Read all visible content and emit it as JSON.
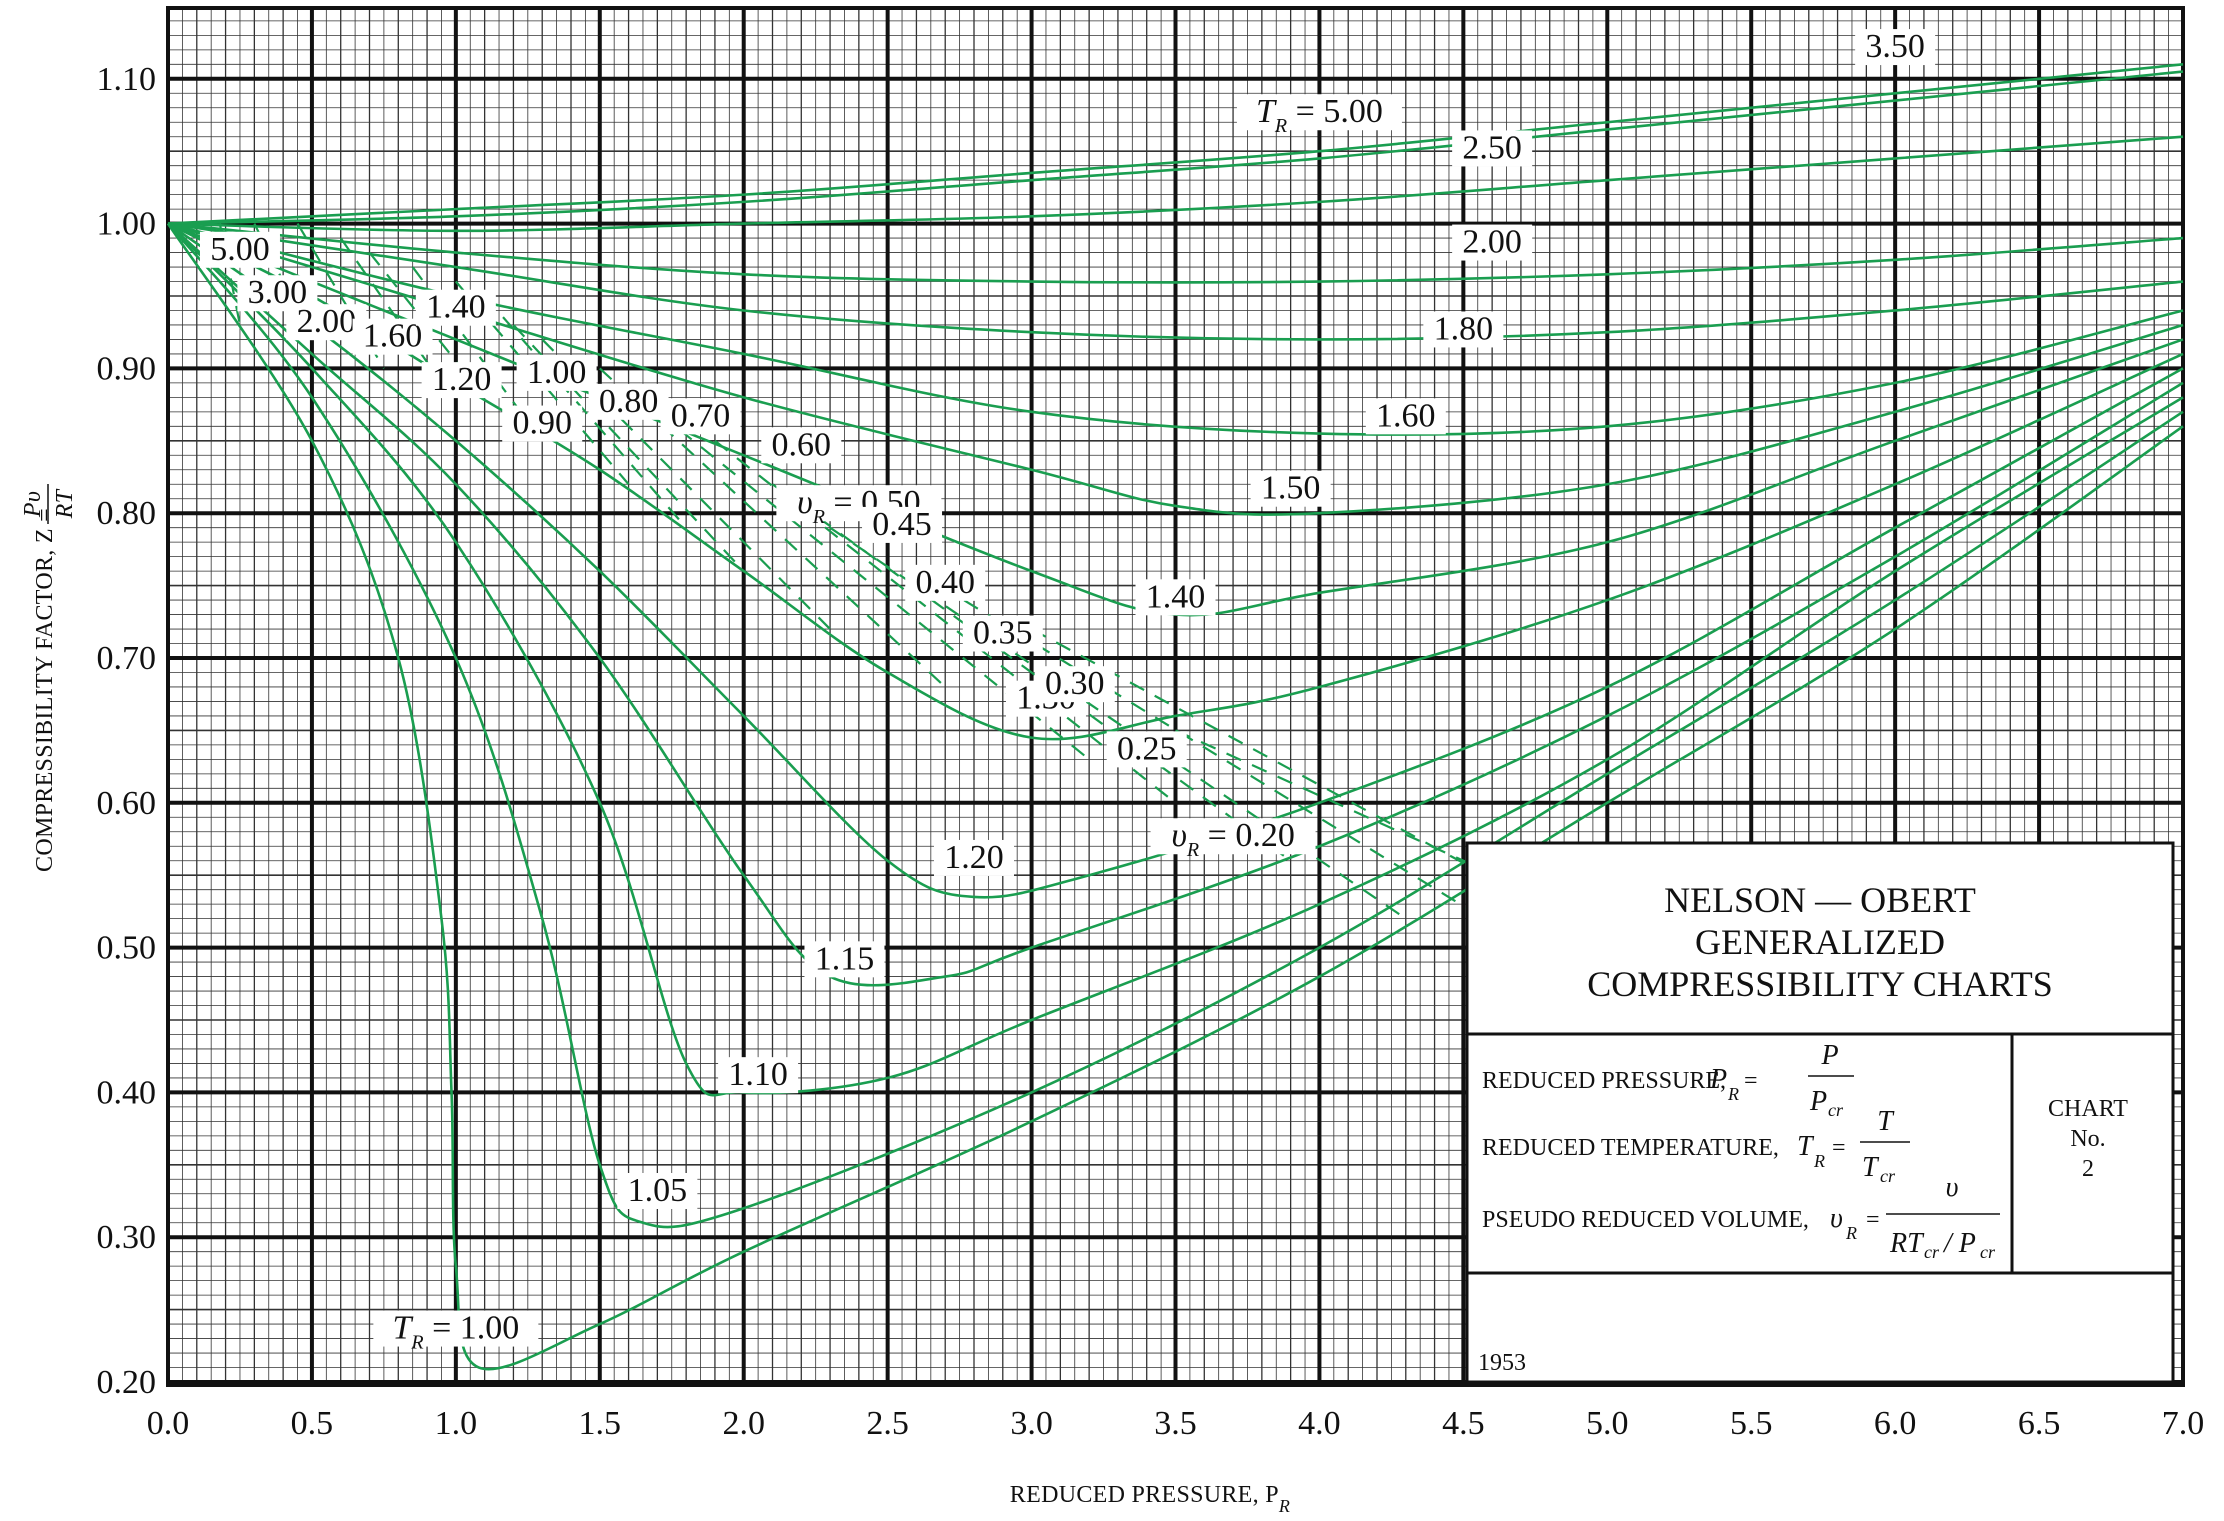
{
  "chart_data": {
    "type": "line",
    "title": "NELSON — OBERT GENERALIZED COMPRESSIBILITY CHARTS",
    "title_lines": [
      "NELSON — OBERT",
      "GENERALIZED",
      "COMPRESSIBILITY CHARTS"
    ],
    "chart_number_lines": [
      "CHART",
      "No.",
      "2"
    ],
    "year": "1953",
    "xlabel": "REDUCED PRESSURE, P",
    "xlabel_sub": "R",
    "ylabel": "COMPRESSIBILITY FACTOR, Z =",
    "ylabel_frac_num": "Pυ",
    "ylabel_frac_den": "RT",
    "xlim": [
      0.0,
      7.0
    ],
    "ylim": [
      0.2,
      1.14
    ],
    "x_ticks": [
      "0.0",
      "0.5",
      "1.0",
      "1.5",
      "2.0",
      "2.5",
      "3.0",
      "3.5",
      "4.0",
      "4.5",
      "5.0",
      "5.5",
      "6.0",
      "6.5",
      "7.0"
    ],
    "y_ticks": [
      "0.20",
      "0.30",
      "0.40",
      "0.50",
      "0.60",
      "0.70",
      "0.80",
      "0.90",
      "1.00",
      "1.10"
    ],
    "grid": true,
    "definitions": [
      {
        "text": "REDUCED PRESSURE,",
        "symbol": "P",
        "sub": "R",
        "num": "P",
        "den": "P",
        "den_sub": "cr"
      },
      {
        "text": "REDUCED TEMPERATURE,",
        "symbol": "T",
        "sub": "R",
        "num": "T",
        "den": "T",
        "den_sub": "cr"
      },
      {
        "text": "PSEUDO REDUCED VOLUME,",
        "symbol": "υ",
        "sub": "R",
        "num": "υ",
        "den": "RT",
        "den_sub": "cr",
        "den_tail": "/ P",
        "den_tail_sub": "cr"
      }
    ],
    "series": [
      {
        "name": "T_R = 1.00",
        "kind": "isotherm",
        "points": [
          [
            0,
            1.0
          ],
          [
            0.5,
            0.85
          ],
          [
            0.8,
            0.7
          ],
          [
            0.95,
            0.52
          ],
          [
            0.985,
            0.4
          ],
          [
            1.0,
            0.28
          ],
          [
            1.08,
            0.21
          ],
          [
            1.5,
            0.24
          ],
          [
            2.0,
            0.29
          ],
          [
            3.0,
            0.38
          ],
          [
            4.0,
            0.48
          ],
          [
            5.0,
            0.6
          ],
          [
            6.0,
            0.72
          ],
          [
            7.0,
            0.86
          ]
        ]
      },
      {
        "name": "T_R = 1.05",
        "kind": "isotherm",
        "points": [
          [
            0,
            1.0
          ],
          [
            0.5,
            0.88
          ],
          [
            1.0,
            0.7
          ],
          [
            1.3,
            0.52
          ],
          [
            1.5,
            0.35
          ],
          [
            1.65,
            0.31
          ],
          [
            2.0,
            0.32
          ],
          [
            3.0,
            0.4
          ],
          [
            4.0,
            0.5
          ],
          [
            5.0,
            0.62
          ],
          [
            6.0,
            0.74
          ],
          [
            7.0,
            0.87
          ]
        ]
      },
      {
        "name": "T_R = 1.10",
        "kind": "isotherm",
        "points": [
          [
            0,
            1.0
          ],
          [
            0.5,
            0.9
          ],
          [
            1.0,
            0.78
          ],
          [
            1.5,
            0.6
          ],
          [
            1.8,
            0.42
          ],
          [
            2.0,
            0.4
          ],
          [
            2.5,
            0.41
          ],
          [
            3.0,
            0.45
          ],
          [
            4.0,
            0.53
          ],
          [
            5.0,
            0.63
          ],
          [
            6.0,
            0.76
          ],
          [
            7.0,
            0.88
          ]
        ]
      },
      {
        "name": "T_R = 1.15",
        "kind": "isotherm",
        "points": [
          [
            0,
            1.0
          ],
          [
            0.5,
            0.91
          ],
          [
            1.0,
            0.82
          ],
          [
            1.5,
            0.7
          ],
          [
            2.0,
            0.55
          ],
          [
            2.3,
            0.48
          ],
          [
            2.7,
            0.48
          ],
          [
            3.0,
            0.5
          ],
          [
            4.0,
            0.57
          ],
          [
            5.0,
            0.66
          ],
          [
            6.0,
            0.77
          ],
          [
            7.0,
            0.89
          ]
        ]
      },
      {
        "name": "T_R = 1.20",
        "kind": "isotherm",
        "points": [
          [
            0,
            1.0
          ],
          [
            0.5,
            0.93
          ],
          [
            1.0,
            0.85
          ],
          [
            1.5,
            0.76
          ],
          [
            2.0,
            0.66
          ],
          [
            2.5,
            0.56
          ],
          [
            2.8,
            0.535
          ],
          [
            3.2,
            0.55
          ],
          [
            4.0,
            0.6
          ],
          [
            5.0,
            0.68
          ],
          [
            6.0,
            0.79
          ],
          [
            7.0,
            0.9
          ]
        ]
      },
      {
        "name": "T_R = 1.30",
        "kind": "isotherm",
        "points": [
          [
            0,
            1.0
          ],
          [
            0.5,
            0.95
          ],
          [
            1.0,
            0.89
          ],
          [
            1.5,
            0.83
          ],
          [
            2.0,
            0.76
          ],
          [
            2.5,
            0.69
          ],
          [
            3.0,
            0.645
          ],
          [
            3.5,
            0.66
          ],
          [
            4.0,
            0.68
          ],
          [
            5.0,
            0.74
          ],
          [
            6.0,
            0.82
          ],
          [
            7.0,
            0.91
          ]
        ]
      },
      {
        "name": "T_R = 1.40",
        "kind": "isotherm",
        "points": [
          [
            0,
            1.0
          ],
          [
            0.5,
            0.96
          ],
          [
            1.0,
            0.92
          ],
          [
            2.0,
            0.84
          ],
          [
            3.0,
            0.76
          ],
          [
            3.5,
            0.73
          ],
          [
            4.0,
            0.745
          ],
          [
            5.0,
            0.78
          ],
          [
            6.0,
            0.85
          ],
          [
            7.0,
            0.92
          ]
        ]
      },
      {
        "name": "T_R = 1.50",
        "kind": "isotherm",
        "points": [
          [
            0,
            1.0
          ],
          [
            0.5,
            0.97
          ],
          [
            1.0,
            0.94
          ],
          [
            2.0,
            0.88
          ],
          [
            3.0,
            0.83
          ],
          [
            3.5,
            0.805
          ],
          [
            4.0,
            0.8
          ],
          [
            5.0,
            0.82
          ],
          [
            6.0,
            0.87
          ],
          [
            7.0,
            0.93
          ]
        ]
      },
      {
        "name": "T_R = 1.60",
        "kind": "isotherm",
        "points": [
          [
            0,
            1.0
          ],
          [
            1.0,
            0.95
          ],
          [
            2.0,
            0.91
          ],
          [
            3.0,
            0.87
          ],
          [
            4.0,
            0.855
          ],
          [
            5.0,
            0.86
          ],
          [
            6.0,
            0.89
          ],
          [
            7.0,
            0.94
          ]
        ]
      },
      {
        "name": "T_R = 1.80",
        "kind": "isotherm",
        "points": [
          [
            0,
            1.0
          ],
          [
            1.0,
            0.97
          ],
          [
            2.0,
            0.94
          ],
          [
            3.0,
            0.925
          ],
          [
            4.0,
            0.92
          ],
          [
            5.0,
            0.925
          ],
          [
            6.0,
            0.94
          ],
          [
            7.0,
            0.96
          ]
        ]
      },
      {
        "name": "T_R = 2.00",
        "kind": "isotherm",
        "points": [
          [
            0,
            1.0
          ],
          [
            1.0,
            0.98
          ],
          [
            2.0,
            0.965
          ],
          [
            3.0,
            0.96
          ],
          [
            4.0,
            0.96
          ],
          [
            5.0,
            0.965
          ],
          [
            6.0,
            0.975
          ],
          [
            7.0,
            0.99
          ]
        ]
      },
      {
        "name": "T_R = 2.50",
        "kind": "isotherm",
        "points": [
          [
            0,
            1.0
          ],
          [
            1.0,
            0.995
          ],
          [
            2.0,
            1.0
          ],
          [
            3.0,
            1.005
          ],
          [
            4.0,
            1.015
          ],
          [
            5.0,
            1.03
          ],
          [
            6.0,
            1.045
          ],
          [
            7.0,
            1.06
          ]
        ]
      },
      {
        "name": "T_R = 3.50",
        "kind": "isotherm",
        "points": [
          [
            0,
            1.0
          ],
          [
            1.0,
            1.005
          ],
          [
            2.0,
            1.015
          ],
          [
            3.0,
            1.03
          ],
          [
            4.0,
            1.045
          ],
          [
            5.0,
            1.065
          ],
          [
            6.0,
            1.085
          ],
          [
            7.0,
            1.105
          ]
        ]
      },
      {
        "name": "T_R = 5.00",
        "kind": "isotherm",
        "points": [
          [
            0,
            1.0
          ],
          [
            1.0,
            1.01
          ],
          [
            2.0,
            1.02
          ],
          [
            3.0,
            1.035
          ],
          [
            4.0,
            1.05
          ],
          [
            5.0,
            1.07
          ],
          [
            6.0,
            1.09
          ],
          [
            7.0,
            1.11
          ]
        ]
      },
      {
        "name": "v_R = 5.00",
        "kind": "volume",
        "points": [
          [
            0.18,
            1.0
          ],
          [
            0.25,
            0.93
          ]
        ]
      },
      {
        "name": "v_R = 3.00",
        "kind": "volume",
        "points": [
          [
            0.3,
            1.0
          ],
          [
            0.5,
            0.92
          ]
        ]
      },
      {
        "name": "v_R = 2.00",
        "kind": "volume",
        "points": [
          [
            0.45,
            1.0
          ],
          [
            0.75,
            0.9
          ]
        ]
      },
      {
        "name": "v_R = 1.60",
        "kind": "volume",
        "points": [
          [
            0.6,
            0.99
          ],
          [
            0.95,
            0.89
          ]
        ]
      },
      {
        "name": "v_R = 1.40",
        "kind": "volume",
        "points": [
          [
            0.7,
            0.98
          ],
          [
            1.1,
            0.88
          ]
        ]
      },
      {
        "name": "v_R = 1.20",
        "kind": "volume",
        "points": [
          [
            0.85,
            0.97
          ],
          [
            1.3,
            0.85
          ]
        ]
      },
      {
        "name": "v_R = 1.00",
        "kind": "volume",
        "points": [
          [
            1.0,
            0.96
          ],
          [
            1.6,
            0.82
          ]
        ]
      },
      {
        "name": "v_R = 0.90",
        "kind": "volume",
        "points": [
          [
            1.1,
            0.95
          ],
          [
            1.8,
            0.79
          ]
        ]
      },
      {
        "name": "v_R = 0.80",
        "kind": "volume",
        "points": [
          [
            1.2,
            0.93
          ],
          [
            2.0,
            0.76
          ]
        ]
      },
      {
        "name": "v_R = 0.70",
        "kind": "volume",
        "points": [
          [
            1.3,
            0.92
          ],
          [
            2.3,
            0.72
          ]
        ]
      },
      {
        "name": "v_R = 0.60",
        "kind": "volume",
        "points": [
          [
            1.5,
            0.9
          ],
          [
            2.7,
            0.68
          ]
        ]
      },
      {
        "name": "v_R = 0.50",
        "kind": "volume",
        "points": [
          [
            1.7,
            0.87
          ],
          [
            3.2,
            0.63
          ]
        ]
      },
      {
        "name": "v_R = 0.45",
        "kind": "volume",
        "points": [
          [
            1.9,
            0.85
          ],
          [
            3.5,
            0.6
          ]
        ]
      },
      {
        "name": "v_R = 0.40",
        "kind": "volume",
        "points": [
          [
            2.1,
            0.82
          ],
          [
            3.9,
            0.56
          ]
        ]
      },
      {
        "name": "v_R = 0.35",
        "kind": "volume",
        "points": [
          [
            2.3,
            0.79
          ],
          [
            4.3,
            0.52
          ]
        ]
      },
      {
        "name": "v_R = 0.30",
        "kind": "volume",
        "points": [
          [
            2.6,
            0.76
          ],
          [
            4.9,
            0.48
          ]
        ]
      },
      {
        "name": "v_R = 0.25",
        "kind": "volume",
        "points": [
          [
            3.0,
            0.72
          ],
          [
            5.6,
            0.44
          ]
        ]
      },
      {
        "name": "v_R = 0.20",
        "kind": "volume",
        "points": [
          [
            3.5,
            0.65
          ],
          [
            6.5,
            0.38
          ]
        ]
      }
    ],
    "curve_labels": [
      {
        "text": "3.50",
        "x": 6.0,
        "y": 1.115
      },
      {
        "text": "T",
        "sub": "R",
        "text2": "= 5.00",
        "x": 4.0,
        "y": 1.07
      },
      {
        "text": "2.50",
        "x": 4.6,
        "y": 1.045
      },
      {
        "text": "2.00",
        "x": 4.6,
        "y": 0.98
      },
      {
        "text": "1.80",
        "x": 4.5,
        "y": 0.92
      },
      {
        "text": "1.60",
        "x": 4.3,
        "y": 0.86
      },
      {
        "text": "1.50",
        "x": 3.9,
        "y": 0.81
      },
      {
        "text": "1.40",
        "x": 3.5,
        "y": 0.735
      },
      {
        "text": "1.30",
        "x": 3.05,
        "y": 0.665
      },
      {
        "text": "1.20",
        "x": 2.8,
        "y": 0.555
      },
      {
        "text": "1.15",
        "x": 2.35,
        "y": 0.485
      },
      {
        "text": "1.10",
        "x": 2.05,
        "y": 0.405
      },
      {
        "text": "1.05",
        "x": 1.7,
        "y": 0.325
      },
      {
        "text": "T",
        "sub": "R",
        "text2": "= 1.00",
        "x": 1.0,
        "y": 0.23
      },
      {
        "text": "5.00",
        "x": 0.25,
        "y": 0.975
      },
      {
        "text": "3.00",
        "x": 0.38,
        "y": 0.945
      },
      {
        "text": "2.00",
        "x": 0.55,
        "y": 0.925
      },
      {
        "text": "1.60",
        "x": 0.78,
        "y": 0.915
      },
      {
        "text": "1.40",
        "x": 1.0,
        "y": 0.935
      },
      {
        "text": "1.20",
        "x": 1.02,
        "y": 0.885
      },
      {
        "text": "1.00",
        "x": 1.35,
        "y": 0.89
      },
      {
        "text": "0.90",
        "x": 1.3,
        "y": 0.855
      },
      {
        "text": "0.80",
        "x": 1.6,
        "y": 0.87
      },
      {
        "text": "0.70",
        "x": 1.85,
        "y": 0.86
      },
      {
        "text": "0.60",
        "x": 2.2,
        "y": 0.84
      },
      {
        "text": "υ",
        "sub": "R",
        "text2": "= 0.50",
        "x": 2.4,
        "y": 0.8
      },
      {
        "text": "0.45",
        "x": 2.55,
        "y": 0.785
      },
      {
        "text": "0.40",
        "x": 2.7,
        "y": 0.745
      },
      {
        "text": "0.35",
        "x": 2.9,
        "y": 0.71
      },
      {
        "text": "0.30",
        "x": 3.15,
        "y": 0.675
      },
      {
        "text": "0.25",
        "x": 3.4,
        "y": 0.63
      },
      {
        "text": "υ",
        "sub": "R",
        "text2": "= 0.20",
        "x": 3.7,
        "y": 0.57
      }
    ]
  },
  "colors": {
    "curve": "#1a9e50",
    "grid_major": "#111111",
    "grid_minor": "#333333",
    "background": "#ffffff"
  }
}
